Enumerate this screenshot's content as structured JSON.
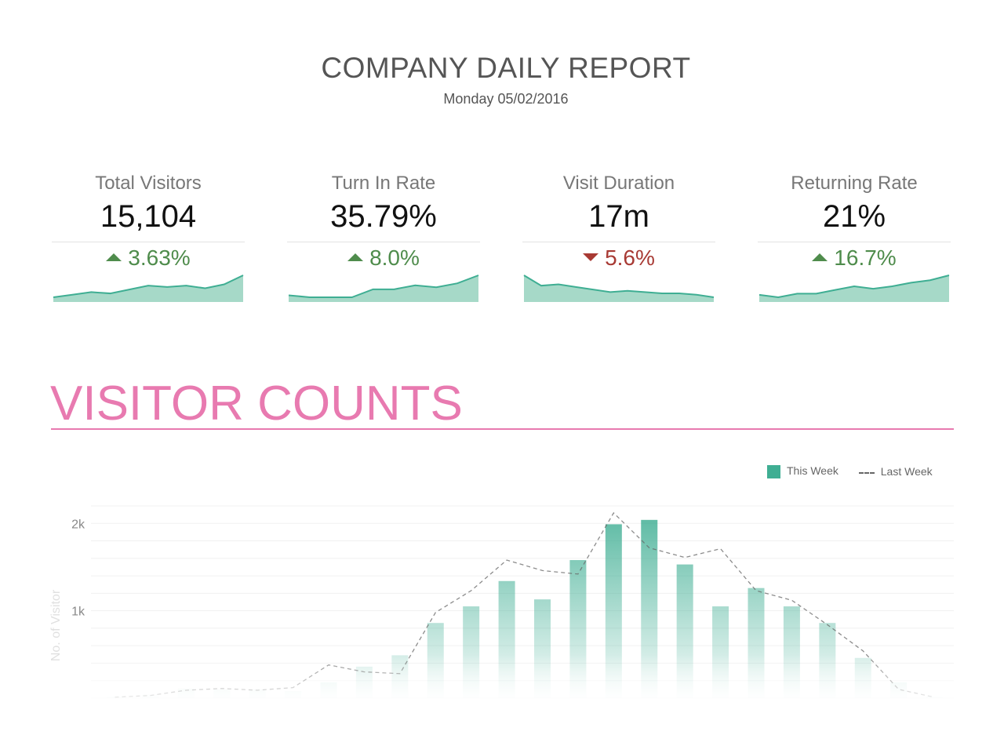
{
  "header": {
    "title": "COMPANY DAILY REPORT",
    "date": "Monday 05/02/2016"
  },
  "kpis": [
    {
      "label": "Total Visitors",
      "value": "15,104",
      "change": "3.63%",
      "direction": "up",
      "trend": [
        3,
        5,
        7,
        6,
        9,
        12,
        11,
        12,
        10,
        13,
        20
      ]
    },
    {
      "label": "Turn In Rate",
      "value": "35.79%",
      "change": "8.0%",
      "direction": "up",
      "trend": [
        6,
        5,
        5,
        5,
        9,
        9,
        11,
        10,
        12,
        16
      ]
    },
    {
      "label": "Visit Duration",
      "value": "17m",
      "change": "5.6%",
      "direction": "down",
      "trend": [
        18,
        10,
        11,
        9,
        7,
        5,
        6,
        5,
        4,
        4,
        3,
        1
      ]
    },
    {
      "label": "Returning Rate",
      "value": "21%",
      "change": "16.7%",
      "direction": "up",
      "trend": [
        4,
        2,
        5,
        5,
        8,
        11,
        9,
        11,
        14,
        16,
        20
      ]
    }
  ],
  "colors": {
    "accent_green": "#3fae93",
    "spark_fill": "#a6d9c8",
    "up": "#4f8c4c",
    "down": "#a83a34",
    "section_pink": "#e87ab0"
  },
  "section": {
    "title": "VISITOR COUNTS"
  },
  "chart_data": {
    "type": "bar",
    "ylabel": "No. of Visitor",
    "yticks": [
      {
        "value": 1000,
        "label": "1k"
      },
      {
        "value": 2000,
        "label": "2k"
      }
    ],
    "ylim": [
      0,
      2200
    ],
    "grid": true,
    "legend_position": "top-right",
    "series": [
      {
        "name": "This Week",
        "style": "bar",
        "values": [
          20,
          40,
          110,
          100,
          100,
          80,
          180,
          360,
          490,
          860,
          1050,
          1340,
          1130,
          1580,
          1990,
          2040,
          1530,
          1050,
          1260,
          1050,
          860,
          460,
          180,
          20
        ]
      },
      {
        "name": "Last Week",
        "style": "dashed-line",
        "values": [
          10,
          30,
          90,
          110,
          90,
          120,
          380,
          300,
          280,
          980,
          1230,
          1580,
          1460,
          1420,
          2120,
          1720,
          1610,
          1710,
          1230,
          1120,
          840,
          540,
          100,
          10
        ]
      }
    ]
  }
}
